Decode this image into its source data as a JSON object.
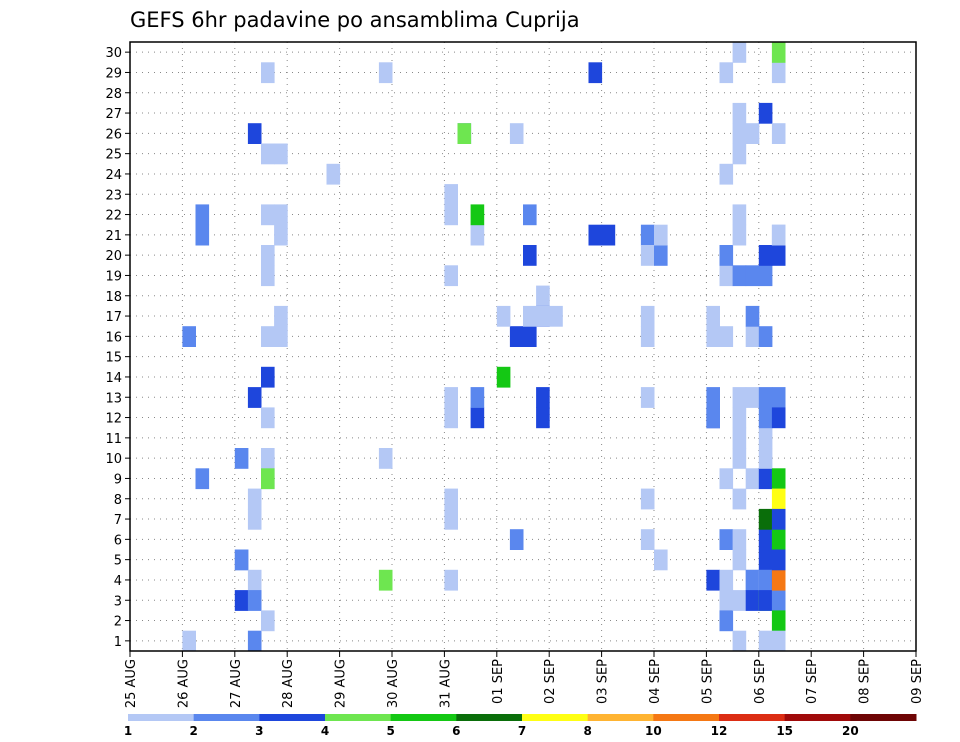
{
  "chart_data": {
    "type": "heatmap",
    "title": "GEFS 6hr padavine po ansamblima Cuprija",
    "y_members": [
      1,
      2,
      3,
      4,
      5,
      6,
      7,
      8,
      9,
      10,
      11,
      12,
      13,
      14,
      15,
      16,
      17,
      18,
      19,
      20,
      21,
      22,
      23,
      24,
      25,
      26,
      27,
      28,
      29,
      30
    ],
    "y_range": [
      0,
      30
    ],
    "x_range_days": [
      0,
      15
    ],
    "x_tick_labels": [
      "25 AUG",
      "26 AUG",
      "27 AUG",
      "28 AUG",
      "29 AUG",
      "30 AUG",
      "31 AUG",
      "01 SEP",
      "02 SEP",
      "03 SEP",
      "04 SEP",
      "05 SEP",
      "06 SEP",
      "07 SEP",
      "08 SEP",
      "09 SEP"
    ],
    "step_days": 0.25,
    "grid": true,
    "colorbar": {
      "levels": [
        1,
        2,
        3,
        4,
        5,
        6,
        7,
        8,
        10,
        12,
        15,
        20
      ],
      "colors": [
        "#b4c8f5",
        "#5a87ee",
        "#1e46dc",
        "#6ee650",
        "#14c814",
        "#0a6e0a",
        "#ffff14",
        "#ffb432",
        "#f57814",
        "#dc2d14",
        "#a00a0a",
        "#6e0505"
      ]
    },
    "cells": [
      [
        1,
        1,
        1
      ],
      [
        1,
        1,
        2
      ],
      [
        1,
        1,
        3
      ],
      [
        1,
        1,
        4
      ],
      [
        1,
        1,
        5
      ],
      [
        1,
        1,
        6
      ],
      [
        1,
        1,
        7
      ],
      [
        1,
        1,
        8
      ],
      [
        1,
        1,
        9
      ],
      [
        1,
        1,
        10
      ],
      [
        1,
        1,
        12
      ],
      [
        1,
        1,
        13
      ],
      [
        1,
        1,
        16
      ],
      [
        1,
        1,
        17
      ],
      [
        1,
        1,
        19
      ],
      [
        1,
        1,
        20
      ],
      [
        1,
        1,
        21
      ],
      [
        1,
        1,
        22
      ],
      [
        1,
        1,
        25
      ],
      [
        1,
        1,
        26
      ],
      [
        1,
        0,
        17
      ],
      [
        1,
        0,
        24
      ],
      [
        1,
        1,
        29
      ],
      [
        1,
        1,
        30
      ],
      [
        1,
        2,
        10
      ],
      [
        1,
        2,
        29
      ],
      [
        1,
        2,
        30
      ],
      [
        1,
        3,
        20
      ],
      [
        1,
        3,
        21
      ],
      [
        1,
        3,
        22
      ],
      [
        1,
        2,
        21
      ],
      [
        1,
        2,
        22
      ],
      [
        2,
        1,
        3
      ],
      [
        2,
        1,
        21
      ],
      [
        2,
        2,
        17
      ],
      [
        2,
        2,
        17
      ],
      [
        2,
        3,
        13
      ],
      [
        2,
        2,
        12
      ],
      [
        2,
        2,
        12
      ],
      [
        2,
        2,
        12
      ],
      [
        3,
        1,
        1
      ],
      [
        3,
        1,
        4
      ],
      [
        3,
        1,
        9
      ],
      [
        3,
        1,
        13
      ],
      [
        3,
        1,
        26
      ],
      [
        3,
        3,
        3
      ],
      [
        2,
        0,
        17
      ],
      [
        1,
        0,
        5
      ]
    ],
    "plot_cells": [
      [
        0,
        4,
        1,
        1
      ],
      [
        0,
        4,
        2,
        16
      ],
      [
        0,
        5,
        2,
        21
      ],
      [
        0,
        5,
        2,
        22
      ],
      [
        0,
        5,
        2,
        9
      ],
      [
        0,
        8,
        1,
        5
      ],
      [
        0,
        8,
        2,
        5
      ],
      [
        0,
        8,
        2,
        10
      ],
      [
        0,
        8,
        3,
        3
      ],
      [
        0,
        9,
        2,
        1
      ],
      [
        0,
        9,
        1,
        4
      ],
      [
        0,
        9,
        2,
        3
      ],
      [
        0,
        9,
        3,
        13
      ],
      [
        0,
        9,
        3,
        26
      ],
      [
        0,
        9,
        1,
        7
      ],
      [
        0,
        9,
        1,
        8
      ],
      [
        0,
        10,
        1,
        2
      ],
      [
        0,
        10,
        1,
        9
      ],
      [
        0,
        10,
        1,
        10
      ],
      [
        0,
        10,
        1,
        12
      ],
      [
        0,
        10,
        1,
        16
      ],
      [
        0,
        10,
        1,
        19
      ],
      [
        0,
        10,
        1,
        20
      ],
      [
        0,
        10,
        4,
        9
      ],
      [
        0,
        10,
        1,
        22
      ],
      [
        0,
        10,
        1,
        25
      ],
      [
        0,
        10,
        1,
        29
      ],
      [
        0,
        10,
        3,
        14
      ],
      [
        0,
        11,
        1,
        25
      ],
      [
        0,
        11,
        1,
        22
      ],
      [
        0,
        11,
        1,
        17
      ],
      [
        0,
        11,
        1,
        16
      ],
      [
        0,
        11,
        1,
        21
      ],
      [
        0,
        15,
        1,
        24
      ],
      [
        0,
        19,
        4,
        4
      ],
      [
        0,
        19,
        1,
        10
      ],
      [
        0,
        19,
        1,
        29
      ],
      [
        0,
        24,
        1,
        4
      ],
      [
        0,
        24,
        1,
        12
      ],
      [
        0,
        24,
        1,
        13
      ],
      [
        0,
        24,
        1,
        19
      ],
      [
        0,
        24,
        1,
        22
      ],
      [
        0,
        24,
        1,
        23
      ],
      [
        0,
        24,
        1,
        8
      ],
      [
        0,
        24,
        1,
        7
      ],
      [
        0,
        25,
        2,
        26
      ],
      [
        0,
        25,
        4,
        26
      ],
      [
        0,
        26,
        3,
        12
      ],
      [
        0,
        26,
        1,
        21
      ],
      [
        0,
        26,
        5,
        22
      ],
      [
        0,
        26,
        2,
        13
      ],
      [
        0,
        29,
        3,
        16
      ],
      [
        0,
        29,
        1,
        26
      ],
      [
        0,
        29,
        2,
        6
      ],
      [
        0,
        28,
        5,
        14
      ],
      [
        0,
        28,
        1,
        17
      ],
      [
        0,
        30,
        3,
        16
      ],
      [
        0,
        30,
        3,
        20
      ],
      [
        0,
        30,
        2,
        22
      ],
      [
        0,
        31,
        3,
        12
      ],
      [
        0,
        31,
        3,
        13
      ],
      [
        0,
        31,
        1,
        18
      ],
      [
        0,
        31,
        3,
        17
      ],
      [
        0,
        31,
        1,
        17
      ],
      [
        0,
        32,
        1,
        17
      ],
      [
        0,
        30,
        1,
        17
      ],
      [
        0,
        35,
        3,
        29
      ],
      [
        0,
        35,
        3,
        21
      ],
      [
        0,
        36,
        3,
        21
      ],
      [
        0,
        39,
        1,
        13
      ],
      [
        0,
        39,
        2,
        21
      ],
      [
        0,
        39,
        1,
        16
      ],
      [
        0,
        39,
        1,
        17
      ],
      [
        0,
        39,
        1,
        20
      ],
      [
        0,
        39,
        1,
        6
      ],
      [
        0,
        40,
        1,
        5
      ],
      [
        0,
        39,
        1,
        8
      ],
      [
        0,
        40,
        2,
        20
      ],
      [
        0,
        40,
        1,
        21
      ],
      [
        0,
        44,
        3,
        12
      ],
      [
        0,
        44,
        2,
        13
      ],
      [
        0,
        44,
        3,
        4
      ],
      [
        0,
        44,
        1,
        16
      ],
      [
        0,
        44,
        1,
        17
      ],
      [
        0,
        44,
        2,
        12
      ],
      [
        0,
        45,
        1,
        29
      ],
      [
        0,
        45,
        1,
        3
      ],
      [
        0,
        45,
        2,
        2
      ],
      [
        0,
        45,
        1,
        4
      ],
      [
        0,
        45,
        2,
        6
      ],
      [
        0,
        45,
        1,
        16
      ],
      [
        0,
        45,
        1,
        19
      ],
      [
        0,
        45,
        2,
        20
      ],
      [
        0,
        45,
        1,
        9
      ],
      [
        0,
        45,
        1,
        24
      ],
      [
        0,
        46,
        1,
        10
      ],
      [
        0,
        46,
        1,
        6
      ],
      [
        0,
        46,
        1,
        3
      ],
      [
        0,
        46,
        1,
        1
      ],
      [
        0,
        46,
        1,
        5
      ],
      [
        0,
        46,
        1,
        11
      ],
      [
        0,
        46,
        2,
        19
      ],
      [
        0,
        46,
        1,
        12
      ],
      [
        0,
        46,
        1,
        13
      ],
      [
        0,
        46,
        1,
        21
      ],
      [
        0,
        46,
        1,
        22
      ],
      [
        0,
        46,
        1,
        8
      ],
      [
        0,
        46,
        1,
        27
      ],
      [
        0,
        46,
        1,
        26
      ],
      [
        0,
        46,
        1,
        25
      ],
      [
        0,
        46,
        1,
        30
      ],
      [
        0,
        46,
        1,
        0
      ],
      [
        0,
        47,
        1,
        4
      ],
      [
        0,
        47,
        2,
        4
      ],
      [
        0,
        47,
        3,
        3
      ],
      [
        0,
        47,
        1,
        16
      ],
      [
        0,
        47,
        1,
        13
      ],
      [
        0,
        47,
        2,
        19
      ],
      [
        0,
        47,
        1,
        9
      ],
      [
        0,
        47,
        1,
        26
      ],
      [
        0,
        47,
        2,
        17
      ],
      [
        0,
        48,
        4,
        3
      ],
      [
        0,
        48,
        1,
        4
      ],
      [
        0,
        48,
        3,
        5
      ],
      [
        0,
        48,
        3,
        6
      ],
      [
        0,
        48,
        3,
        9
      ],
      [
        0,
        48,
        6,
        7
      ],
      [
        0,
        48,
        1,
        11
      ],
      [
        0,
        48,
        2,
        4
      ],
      [
        0,
        48,
        3,
        3
      ],
      [
        0,
        48,
        3,
        27
      ],
      [
        0,
        48,
        2,
        19
      ],
      [
        0,
        48,
        2,
        13
      ],
      [
        0,
        48,
        3,
        20
      ],
      [
        0,
        48,
        2,
        16
      ],
      [
        0,
        48,
        1,
        10
      ],
      [
        0,
        48,
        1,
        1
      ],
      [
        0,
        48,
        2,
        12
      ],
      [
        0,
        49,
        5,
        9
      ],
      [
        0,
        49,
        5,
        6
      ],
      [
        0,
        49,
        3,
        4
      ],
      [
        0,
        49,
        2,
        3
      ],
      [
        0,
        49,
        5,
        2
      ],
      [
        0,
        49,
        9,
        4
      ],
      [
        0,
        49,
        3,
        20
      ],
      [
        0,
        49,
        3,
        5
      ],
      [
        0,
        49,
        7,
        8
      ],
      [
        0,
        49,
        1,
        21
      ],
      [
        0,
        49,
        1,
        1
      ],
      [
        0,
        49,
        2,
        13
      ],
      [
        0,
        49,
        3,
        7
      ],
      [
        0,
        49,
        1,
        21
      ],
      [
        0,
        49,
        3,
        12
      ],
      [
        0,
        49,
        1,
        29
      ],
      [
        0,
        49,
        1,
        26
      ],
      [
        0,
        49,
        4,
        30
      ]
    ]
  }
}
